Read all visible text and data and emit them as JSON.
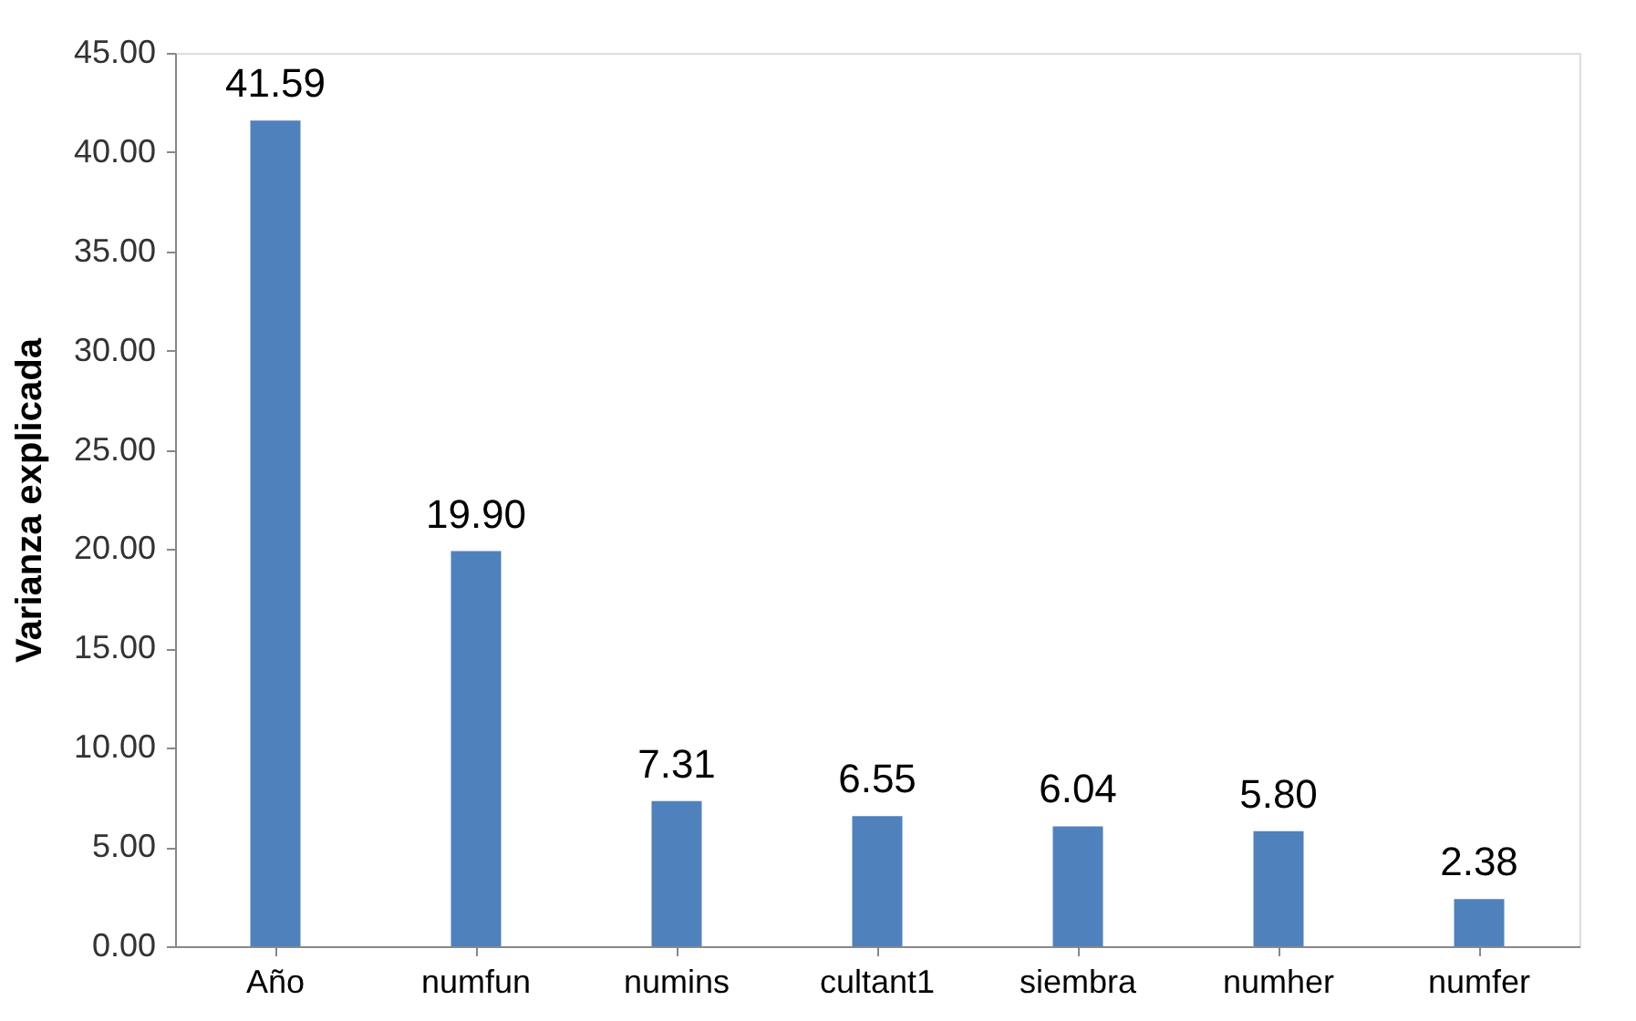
{
  "chart_data": {
    "type": "bar",
    "ylabel": "Varianza explicada",
    "categories": [
      "Año",
      "numfun",
      "numins",
      "cultant1",
      "siembra",
      "numher",
      "numfer"
    ],
    "values": [
      41.59,
      19.9,
      7.31,
      6.55,
      6.04,
      5.8,
      2.38
    ],
    "value_labels": [
      "41.59",
      "19.90",
      "7.31",
      "6.55",
      "6.04",
      "5.80",
      "2.38"
    ],
    "color": "#4f81bd",
    "ylim": [
      0,
      45
    ],
    "yticks": [
      {
        "value": 0,
        "label": "0.00"
      },
      {
        "value": 5,
        "label": "5.00"
      },
      {
        "value": 10,
        "label": "10.00"
      },
      {
        "value": 15,
        "label": "15.00"
      },
      {
        "value": 20,
        "label": "20.00"
      },
      {
        "value": 25,
        "label": "25.00"
      },
      {
        "value": 30,
        "label": "30.00"
      },
      {
        "value": 35,
        "label": "35.00"
      },
      {
        "value": 40,
        "label": "40.00"
      },
      {
        "value": 45,
        "label": "45.00"
      }
    ],
    "grid": false
  }
}
